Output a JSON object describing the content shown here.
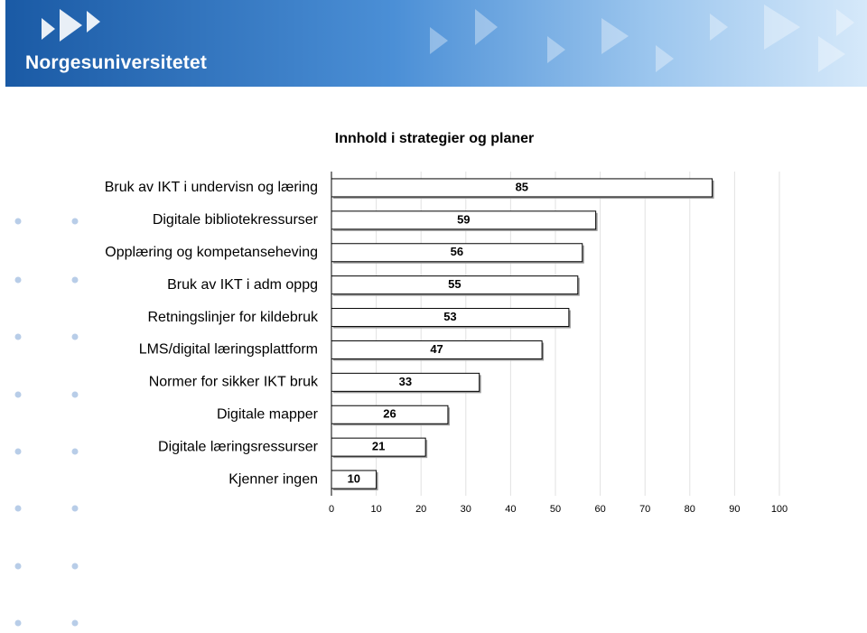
{
  "header": {
    "title": "Norgesuniversitetet"
  },
  "chart_data": {
    "type": "bar",
    "orientation": "horizontal",
    "title": "Innhold i strategier og planer",
    "categories": [
      "Bruk av IKT i undervisn og læring",
      "Digitale bibliotekressurser",
      "Opplæring og kompetanseheving",
      "Bruk av IKT i adm oppg",
      "Retningslinjer for kildebruk",
      "LMS/digital læringsplattform",
      "Normer for sikker IKT bruk",
      "Digitale mapper",
      "Digitale læringsressurser",
      "Kjenner ingen"
    ],
    "values": [
      85,
      59,
      56,
      55,
      53,
      47,
      33,
      26,
      21,
      10
    ],
    "color": "#ffffff",
    "xlim": [
      0,
      100
    ],
    "xticks": [
      0,
      10,
      20,
      30,
      40,
      50,
      60,
      70,
      80,
      90,
      100
    ],
    "grid": true
  }
}
